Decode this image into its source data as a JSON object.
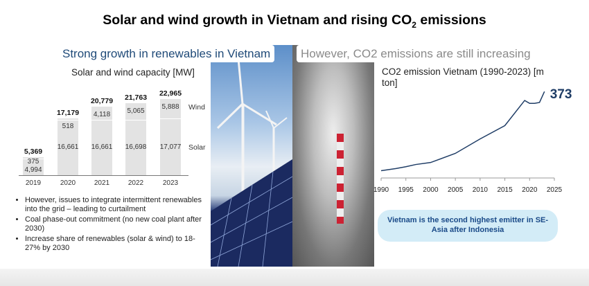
{
  "title": {
    "text": "Solar and wind growth in Vietnam and rising CO",
    "sub": "2",
    "suffix": " emissions"
  },
  "headers": {
    "left": "Strong growth in renewables in Vietnam",
    "right": "However, CO2 emissions are still increasing"
  },
  "chart_data": [
    {
      "type": "bar",
      "title": "Solar and wind capacity [MW]",
      "categories": [
        "2019",
        "2020",
        "2021",
        "2022",
        "2023"
      ],
      "series": [
        {
          "name": "Solar",
          "values": [
            4994,
            16661,
            16661,
            16698,
            17077
          ]
        },
        {
          "name": "Wind",
          "values": [
            375,
            518,
            4118,
            5065,
            5888
          ]
        }
      ],
      "totals": [
        5369,
        17179,
        20779,
        21763,
        22965
      ],
      "value_labels": {
        "solar": [
          "4,994",
          "16,661",
          "16,661",
          "16,698",
          "17,077"
        ],
        "wind": [
          "375",
          "518",
          "4,118",
          "5,065",
          "5,888"
        ],
        "totals": [
          "5,369",
          "17,179",
          "20,779",
          "21,763",
          "22,965"
        ]
      },
      "stacked": true,
      "legend_placement": "right",
      "color": "#e3e3e3"
    },
    {
      "type": "line",
      "title": "CO2 emission Vietnam (1990-2023) [m ton]",
      "x": [
        1990,
        1993,
        1995,
        1997,
        2000,
        2005,
        2010,
        2015,
        2019,
        2020,
        2021,
        2022,
        2023
      ],
      "y": [
        17,
        27,
        35,
        45,
        54,
        95,
        160,
        220,
        333,
        320,
        320,
        324,
        373
      ],
      "end_label": "373",
      "xticks": [
        "1990",
        "1995",
        "2000",
        "2005",
        "2010",
        "2015",
        "2020",
        "2025"
      ],
      "xlim": [
        1990,
        2025
      ],
      "ylim": [
        0,
        380
      ],
      "color": "#1f3d66"
    }
  ],
  "bullets": [
    "However, issues to integrate intermittent renewables into the grid – leading to curtailment",
    "Coal phase-out commitment (no new coal plant after 2030)",
    "Increase share of renewables (solar & wind) to 18-27% by 2030"
  ],
  "callout": "Vietnam is the second highest emitter in SE-Asia after Indonesia"
}
